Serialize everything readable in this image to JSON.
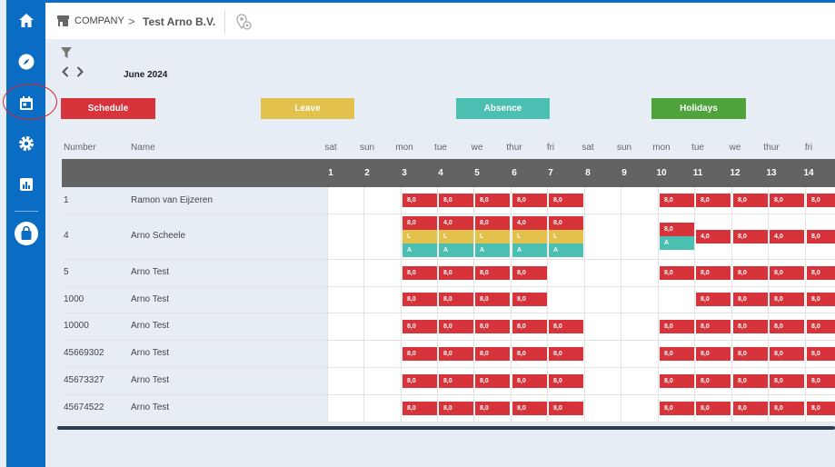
{
  "breadcrumb": {
    "company": "COMPANY",
    "separator": ">",
    "name": "Test Arno B.V."
  },
  "month_label": "June 2024",
  "legend": [
    {
      "label": "Schedule",
      "color": "#d7333b"
    },
    {
      "label": "Leave",
      "color": "#e2c14d"
    },
    {
      "label": "Absence",
      "color": "#4bbfb1"
    },
    {
      "label": "Holidays",
      "color": "#4ea33a"
    }
  ],
  "columns": {
    "number": "Number",
    "name": "Name"
  },
  "days": [
    {
      "name": "sat",
      "num": "1"
    },
    {
      "name": "sun",
      "num": "2"
    },
    {
      "name": "mon",
      "num": "3"
    },
    {
      "name": "tue",
      "num": "4"
    },
    {
      "name": "we",
      "num": "5"
    },
    {
      "name": "thur",
      "num": "6"
    },
    {
      "name": "fri",
      "num": "7"
    },
    {
      "name": "sat",
      "num": "8"
    },
    {
      "name": "sun",
      "num": "9"
    },
    {
      "name": "mon",
      "num": "10"
    },
    {
      "name": "tue",
      "num": "11"
    },
    {
      "name": "we",
      "num": "12"
    },
    {
      "name": "thur",
      "num": "13"
    },
    {
      "name": "fri",
      "num": "14"
    }
  ],
  "rows": [
    {
      "number": "1",
      "name": "Ramon van Eijzeren"
    },
    {
      "number": "4",
      "name": "Arno Scheele"
    },
    {
      "number": "5",
      "name": "Arno Test"
    },
    {
      "number": "1000",
      "name": "Arno Test"
    },
    {
      "number": "10000",
      "name": "Arno Test"
    },
    {
      "number": "45669302",
      "name": "Arno Test"
    },
    {
      "number": "45673327",
      "name": "Arno Test"
    },
    {
      "number": "45674522",
      "name": "Arno Test"
    }
  ],
  "entries": [
    {
      "row": 0,
      "day": 2,
      "kind": "s",
      "text": "8,0"
    },
    {
      "row": 0,
      "day": 3,
      "kind": "s",
      "text": "8,0"
    },
    {
      "row": 0,
      "day": 4,
      "kind": "s",
      "text": "8,0"
    },
    {
      "row": 0,
      "day": 5,
      "kind": "s",
      "text": "8,0"
    },
    {
      "row": 0,
      "day": 6,
      "kind": "s",
      "text": "8,0"
    },
    {
      "row": 0,
      "day": 9,
      "kind": "s",
      "text": "8,0"
    },
    {
      "row": 0,
      "day": 10,
      "kind": "s",
      "text": "8,0"
    },
    {
      "row": 0,
      "day": 11,
      "kind": "s",
      "text": "8,0"
    },
    {
      "row": 0,
      "day": 12,
      "kind": "s",
      "text": "8,0"
    },
    {
      "row": 0,
      "day": 13,
      "kind": "s",
      "text": "8,0"
    },
    {
      "row": 1,
      "day": 2,
      "kind": "s",
      "text": "8,0",
      "sub": 0
    },
    {
      "row": 1,
      "day": 3,
      "kind": "s",
      "text": "4,0",
      "sub": 0
    },
    {
      "row": 1,
      "day": 4,
      "kind": "s",
      "text": "8,0",
      "sub": 0
    },
    {
      "row": 1,
      "day": 5,
      "kind": "s",
      "text": "4,0",
      "sub": 0
    },
    {
      "row": 1,
      "day": 6,
      "kind": "s",
      "text": "8,0",
      "sub": 0
    },
    {
      "row": 1,
      "day": 2,
      "kind": "l",
      "text": "L",
      "sub": 1
    },
    {
      "row": 1,
      "day": 3,
      "kind": "l",
      "text": "L",
      "sub": 1
    },
    {
      "row": 1,
      "day": 4,
      "kind": "l",
      "text": "L",
      "sub": 1
    },
    {
      "row": 1,
      "day": 5,
      "kind": "l",
      "text": "L",
      "sub": 1
    },
    {
      "row": 1,
      "day": 6,
      "kind": "l",
      "text": "L",
      "sub": 1
    },
    {
      "row": 1,
      "day": 2,
      "kind": "a",
      "text": "A",
      "sub": 2
    },
    {
      "row": 1,
      "day": 3,
      "kind": "a",
      "text": "A",
      "sub": 2
    },
    {
      "row": 1,
      "day": 4,
      "kind": "a",
      "text": "A",
      "sub": 2
    },
    {
      "row": 1,
      "day": 5,
      "kind": "a",
      "text": "A",
      "sub": 2
    },
    {
      "row": 1,
      "day": 6,
      "kind": "a",
      "text": "A",
      "sub": 2
    },
    {
      "row": 1,
      "day": 9,
      "kind": "s",
      "text": "8,0",
      "sub": 3
    },
    {
      "row": 1,
      "day": 9,
      "kind": "a",
      "text": "A",
      "sub": 4
    },
    {
      "row": 1,
      "day": 10,
      "kind": "s",
      "text": "4,0"
    },
    {
      "row": 1,
      "day": 11,
      "kind": "s",
      "text": "8,0"
    },
    {
      "row": 1,
      "day": 12,
      "kind": "s",
      "text": "4,0"
    },
    {
      "row": 1,
      "day": 13,
      "kind": "s",
      "text": "8,0"
    },
    {
      "row": 2,
      "day": 2,
      "kind": "s",
      "text": "8,0"
    },
    {
      "row": 2,
      "day": 3,
      "kind": "s",
      "text": "8,0"
    },
    {
      "row": 2,
      "day": 4,
      "kind": "s",
      "text": "8,0"
    },
    {
      "row": 2,
      "day": 5,
      "kind": "s",
      "text": "8,0"
    },
    {
      "row": 2,
      "day": 9,
      "kind": "s",
      "text": "8,0"
    },
    {
      "row": 2,
      "day": 10,
      "kind": "s",
      "text": "8,0"
    },
    {
      "row": 2,
      "day": 11,
      "kind": "s",
      "text": "8,0"
    },
    {
      "row": 2,
      "day": 12,
      "kind": "s",
      "text": "8,0"
    },
    {
      "row": 2,
      "day": 13,
      "kind": "s",
      "text": "8,0"
    },
    {
      "row": 3,
      "day": 2,
      "kind": "s",
      "text": "8,0"
    },
    {
      "row": 3,
      "day": 3,
      "kind": "s",
      "text": "8,0"
    },
    {
      "row": 3,
      "day": 4,
      "kind": "s",
      "text": "8,0"
    },
    {
      "row": 3,
      "day": 5,
      "kind": "s",
      "text": "8,0"
    },
    {
      "row": 3,
      "day": 10,
      "kind": "s",
      "text": "8,0"
    },
    {
      "row": 3,
      "day": 11,
      "kind": "s",
      "text": "8,0"
    },
    {
      "row": 3,
      "day": 12,
      "kind": "s",
      "text": "8,0"
    },
    {
      "row": 3,
      "day": 13,
      "kind": "s",
      "text": "8,0"
    },
    {
      "row": 4,
      "day": 2,
      "kind": "s",
      "text": "8,0"
    },
    {
      "row": 4,
      "day": 3,
      "kind": "s",
      "text": "8,0"
    },
    {
      "row": 4,
      "day": 4,
      "kind": "s",
      "text": "8,0"
    },
    {
      "row": 4,
      "day": 5,
      "kind": "s",
      "text": "8,0"
    },
    {
      "row": 4,
      "day": 6,
      "kind": "s",
      "text": "8,0"
    },
    {
      "row": 4,
      "day": 9,
      "kind": "s",
      "text": "8,0"
    },
    {
      "row": 4,
      "day": 10,
      "kind": "s",
      "text": "8,0"
    },
    {
      "row": 4,
      "day": 11,
      "kind": "s",
      "text": "8,0"
    },
    {
      "row": 4,
      "day": 12,
      "kind": "s",
      "text": "8,0"
    },
    {
      "row": 4,
      "day": 13,
      "kind": "s",
      "text": "8,0"
    },
    {
      "row": 5,
      "day": 2,
      "kind": "s",
      "text": "8,0"
    },
    {
      "row": 5,
      "day": 3,
      "kind": "s",
      "text": "8,0"
    },
    {
      "row": 5,
      "day": 4,
      "kind": "s",
      "text": "8,0"
    },
    {
      "row": 5,
      "day": 5,
      "kind": "s",
      "text": "8,0"
    },
    {
      "row": 5,
      "day": 6,
      "kind": "s",
      "text": "8,0"
    },
    {
      "row": 5,
      "day": 9,
      "kind": "s",
      "text": "8,0"
    },
    {
      "row": 5,
      "day": 10,
      "kind": "s",
      "text": "8,0"
    },
    {
      "row": 5,
      "day": 11,
      "kind": "s",
      "text": "8,0"
    },
    {
      "row": 5,
      "day": 12,
      "kind": "s",
      "text": "8,0"
    },
    {
      "row": 5,
      "day": 13,
      "kind": "s",
      "text": "8,0"
    },
    {
      "row": 6,
      "day": 2,
      "kind": "s",
      "text": "8,0"
    },
    {
      "row": 6,
      "day": 3,
      "kind": "s",
      "text": "8,0"
    },
    {
      "row": 6,
      "day": 4,
      "kind": "s",
      "text": "8,0"
    },
    {
      "row": 6,
      "day": 5,
      "kind": "s",
      "text": "8,0"
    },
    {
      "row": 6,
      "day": 6,
      "kind": "s",
      "text": "8,0"
    },
    {
      "row": 6,
      "day": 9,
      "kind": "s",
      "text": "8,0"
    },
    {
      "row": 6,
      "day": 10,
      "kind": "s",
      "text": "8,0"
    },
    {
      "row": 6,
      "day": 11,
      "kind": "s",
      "text": "8,0"
    },
    {
      "row": 6,
      "day": 12,
      "kind": "s",
      "text": "8,0"
    },
    {
      "row": 6,
      "day": 13,
      "kind": "s",
      "text": "8,0"
    },
    {
      "row": 7,
      "day": 2,
      "kind": "s",
      "text": "8,0"
    },
    {
      "row": 7,
      "day": 3,
      "kind": "s",
      "text": "8,0"
    },
    {
      "row": 7,
      "day": 4,
      "kind": "s",
      "text": "8,0"
    },
    {
      "row": 7,
      "day": 5,
      "kind": "s",
      "text": "8,0"
    },
    {
      "row": 7,
      "day": 6,
      "kind": "s",
      "text": "8,0"
    },
    {
      "row": 7,
      "day": 9,
      "kind": "s",
      "text": "8,0"
    },
    {
      "row": 7,
      "day": 10,
      "kind": "s",
      "text": "8,0"
    },
    {
      "row": 7,
      "day": 11,
      "kind": "s",
      "text": "8,0"
    },
    {
      "row": 7,
      "day": 12,
      "kind": "s",
      "text": "8,0"
    },
    {
      "row": 7,
      "day": 13,
      "kind": "s",
      "text": "8,0"
    }
  ]
}
